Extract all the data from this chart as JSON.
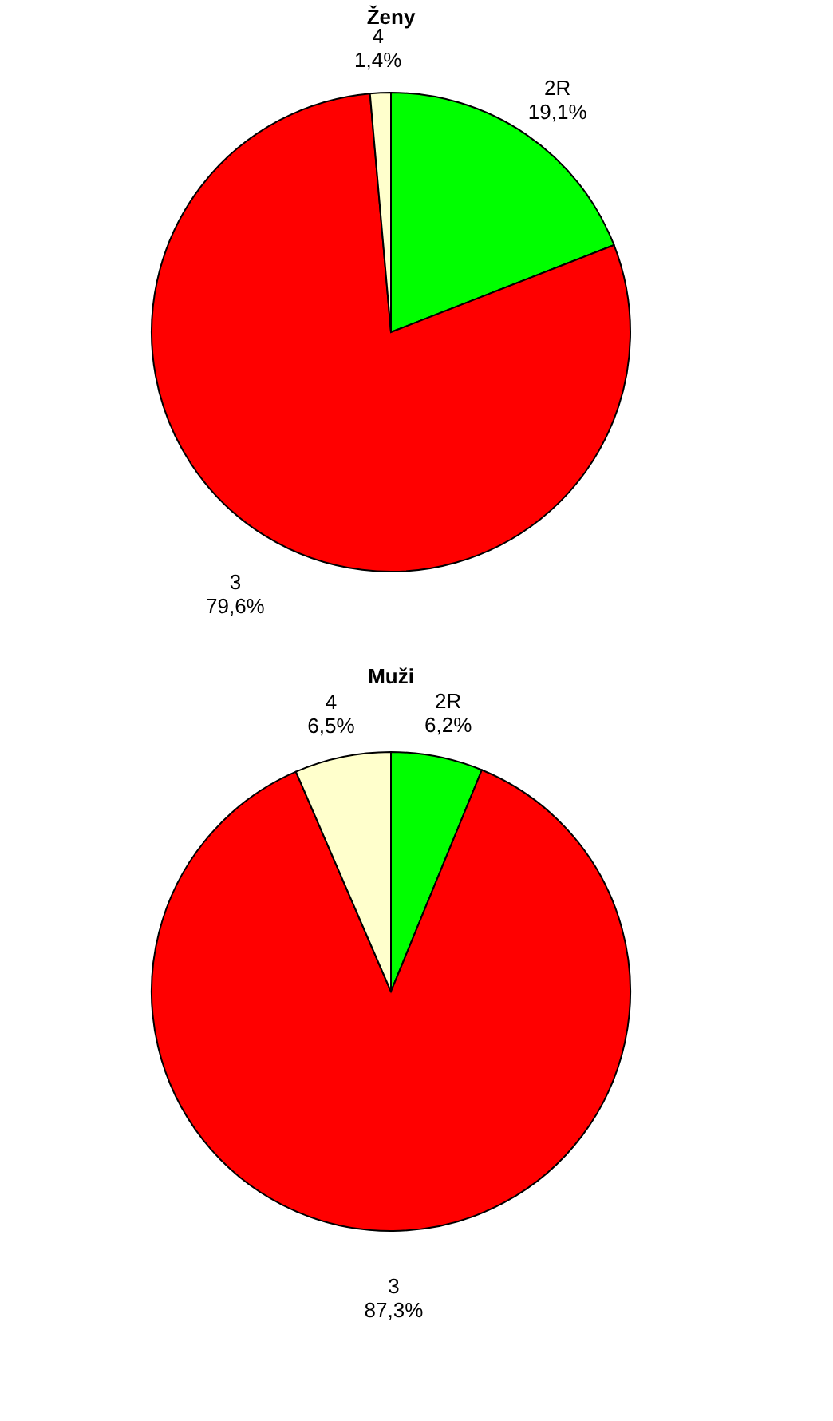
{
  "chart_data": [
    {
      "type": "pie",
      "title": "Ženy",
      "categories": [
        "2R",
        "3",
        "4"
      ],
      "values": [
        19.1,
        79.6,
        1.4
      ],
      "value_labels": [
        "19,1%",
        "79,6%",
        "1,4%"
      ],
      "colors": [
        "#00ff00",
        "#ff0000",
        "#ffffcc"
      ],
      "legend": false
    },
    {
      "type": "pie",
      "title": "Muži",
      "categories": [
        "2R",
        "3",
        "4"
      ],
      "values": [
        6.2,
        87.3,
        6.5
      ],
      "value_labels": [
        "6,2%",
        "87,3%",
        "6,5%"
      ],
      "colors": [
        "#00ff00",
        "#ff0000",
        "#ffffcc"
      ],
      "legend": false
    }
  ]
}
